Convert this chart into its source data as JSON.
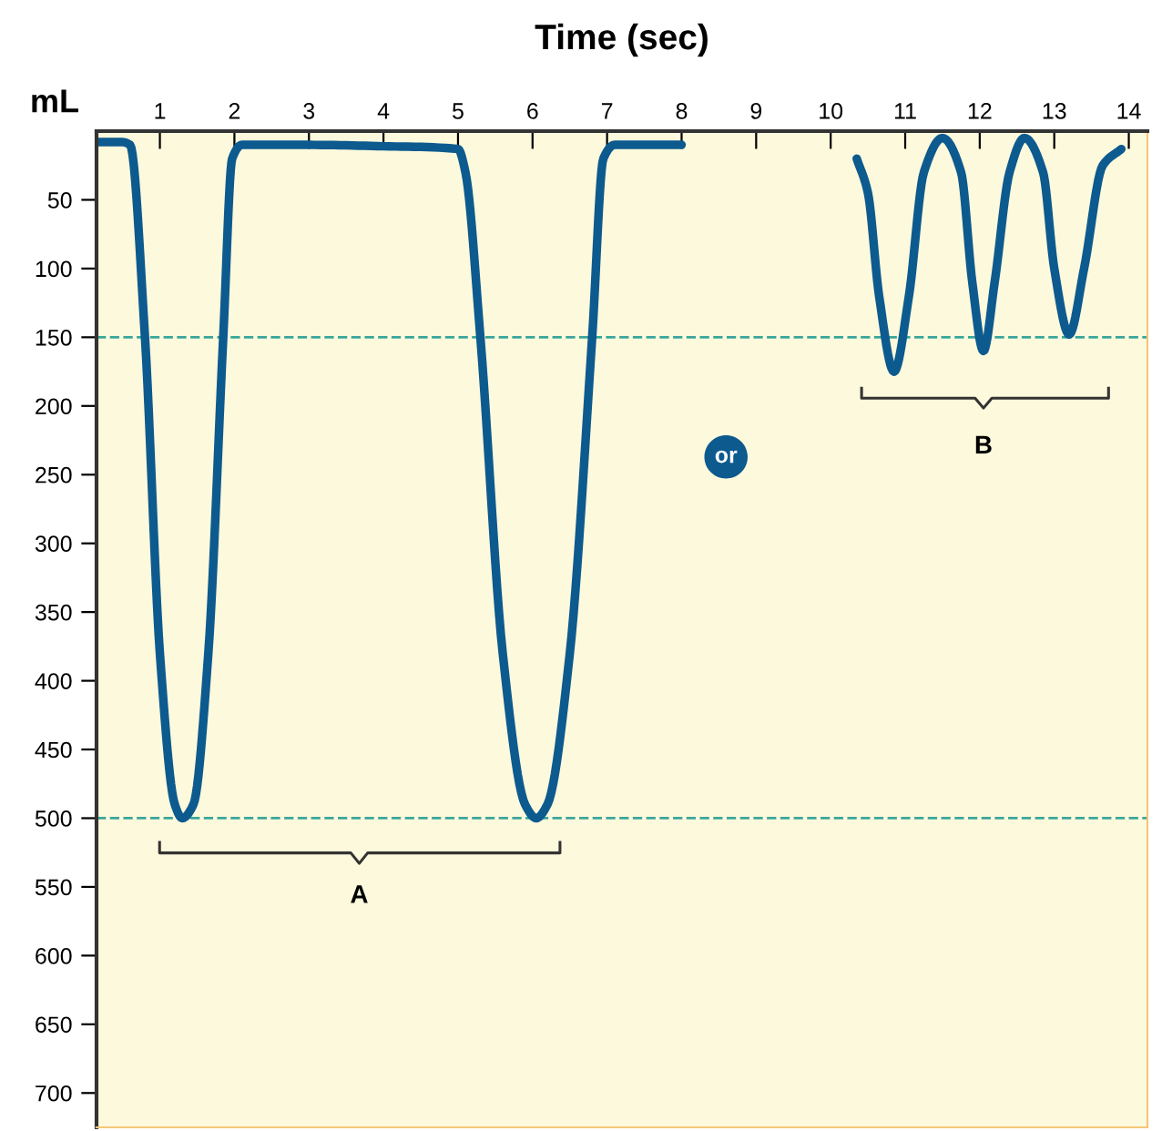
{
  "chart_data": {
    "type": "line",
    "title": "Time (sec)",
    "ylabel": "mL",
    "series": [
      {
        "color": "#0d5a8f",
        "x": [
          0.15,
          0.5,
          0.6,
          0.8,
          1.0,
          1.2,
          1.3,
          1.45,
          1.65,
          1.85,
          1.97,
          2.1,
          3,
          4,
          5,
          5.1,
          5.3,
          5.6,
          5.9,
          6.05,
          6.2,
          6.5,
          6.8,
          6.95,
          7.1,
          8
        ],
        "values": [
          8,
          8,
          10,
          150,
          380,
          490,
          500,
          490,
          380,
          150,
          20,
          10,
          10,
          11,
          13,
          30,
          150,
          380,
          490,
          500,
          490,
          380,
          150,
          20,
          10,
          10
        ]
      },
      {
        "color": "#0d5a8f",
        "x": [
          10.35,
          10.5,
          10.65,
          10.85,
          11.05,
          11.25,
          11.5,
          11.75,
          11.9,
          12.05,
          12.2,
          12.4,
          12.6,
          12.85,
          13.0,
          13.2,
          13.4,
          13.65,
          13.9
        ],
        "values": [
          20,
          45,
          120,
          175,
          120,
          30,
          5,
          30,
          110,
          160,
          110,
          30,
          5,
          30,
          100,
          148,
          100,
          25,
          13
        ]
      }
    ],
    "xlim": [
      0.15,
      14.25
    ],
    "ylim": [
      725,
      0
    ],
    "xticks": [
      1,
      2,
      3,
      4,
      5,
      6,
      7,
      8,
      9,
      10,
      11,
      12,
      13,
      14
    ],
    "yticks": [
      50,
      100,
      150,
      200,
      250,
      300,
      350,
      400,
      450,
      500,
      550,
      600,
      650,
      700
    ],
    "ref_lines": [
      {
        "axis": "y",
        "value": 150,
        "color": "#3aa69a",
        "line_style": "dashed"
      },
      {
        "axis": "y",
        "value": 500,
        "color": "#3aa69a",
        "line_style": "dashed"
      }
    ],
    "annotations": [
      "A",
      "B",
      "or"
    ],
    "line_style": "solid"
  }
}
